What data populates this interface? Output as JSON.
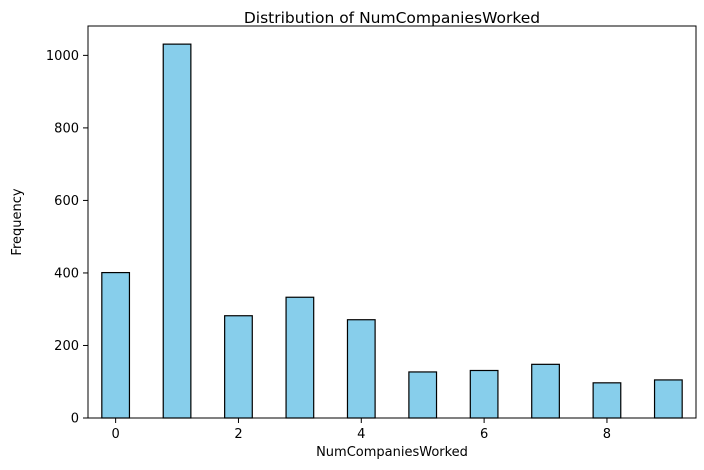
{
  "chart_data": {
    "type": "bar",
    "title": "Distribution of NumCompaniesWorked",
    "xlabel": "NumCompaniesWorked",
    "ylabel": "Frequency",
    "xlim": [
      -0.45,
      9.45
    ],
    "ylim": [
      0,
      1081
    ],
    "xticks": [
      0,
      2,
      4,
      6,
      8
    ],
    "yticks": [
      0,
      200,
      400,
      600,
      800,
      1000
    ],
    "bin_width": 0.45,
    "bins": [
      {
        "x": 0,
        "value": 401
      },
      {
        "x": 1,
        "value": 1031
      },
      {
        "x": 2,
        "value": 282
      },
      {
        "x": 3,
        "value": 333
      },
      {
        "x": 4,
        "value": 271
      },
      {
        "x": 5,
        "value": 127
      },
      {
        "x": 6,
        "value": 131
      },
      {
        "x": 7,
        "value": 148
      },
      {
        "x": 8,
        "value": 97
      },
      {
        "x": 9,
        "value": 105
      }
    ],
    "bar_color": "#87ceeb",
    "edge_color": "#000000",
    "grid": false,
    "legend": "none"
  }
}
